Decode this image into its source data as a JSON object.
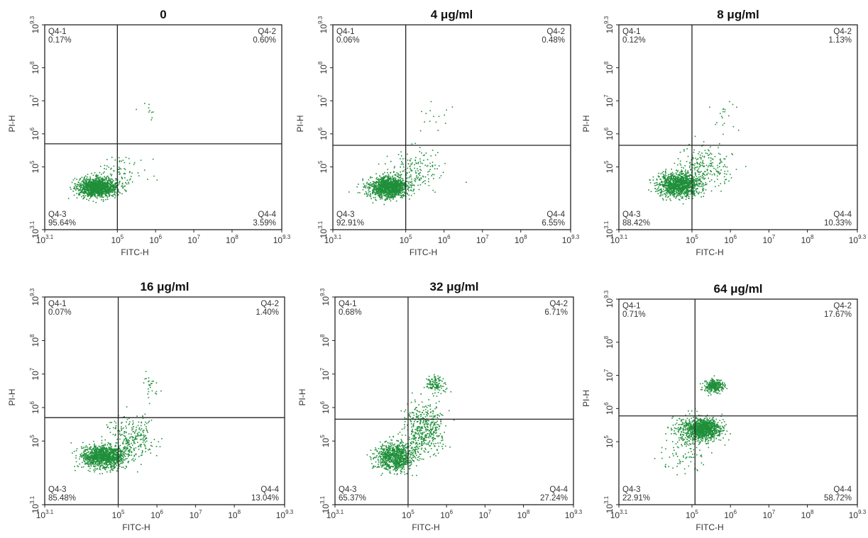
{
  "chart_data": [
    {
      "type": "scatter",
      "title": "0",
      "xlabel": "FITC-H",
      "ylabel": "PI-H",
      "x_scale": "log",
      "y_scale": "log",
      "xlim": [
        1258.9,
        1995262315
      ],
      "ylim": [
        1258.9,
        1995262315
      ],
      "x_ticks": [
        "10^3.1",
        "10^5",
        "10^6",
        "10^7",
        "10^8",
        "10^9.3"
      ],
      "y_ticks": [
        "10^3.1",
        "10^5",
        "10^6",
        "10^7",
        "10^8",
        "10^9.3"
      ],
      "gate": {
        "x": 100000,
        "y": 500000
      },
      "quadrants": [
        {
          "name": "Q4-1",
          "value": "0.17%",
          "pos": "top-left"
        },
        {
          "name": "Q4-2",
          "value": "0.60%",
          "pos": "top-right"
        },
        {
          "name": "Q4-3",
          "value": "95.64%",
          "pos": "bottom-left"
        },
        {
          "name": "Q4-4",
          "value": "3.59%",
          "pos": "bottom-right"
        }
      ],
      "clusters": [
        {
          "cx": 30000,
          "cy": 25000,
          "sx": 0.25,
          "sy": 0.14,
          "n": 1400
        },
        {
          "cx": 120000,
          "cy": 70000,
          "sx": 0.35,
          "sy": 0.28,
          "n": 90
        },
        {
          "cx": 600000,
          "cy": 5000000,
          "sx": 0.15,
          "sy": 0.12,
          "n": 10
        }
      ]
    },
    {
      "type": "scatter",
      "title": "4 μg/ml",
      "xlabel": "FITC-H",
      "ylabel": "PI-H",
      "x_scale": "log",
      "y_scale": "log",
      "xlim": [
        1258.9,
        1995262315
      ],
      "ylim": [
        1258.9,
        1995262315
      ],
      "x_ticks": [
        "10^3.1",
        "10^5",
        "10^6",
        "10^7",
        "10^8",
        "10^9.3"
      ],
      "y_ticks": [
        "10^3.1",
        "10^5",
        "10^6",
        "10^7",
        "10^8",
        "10^9.3"
      ],
      "gate": {
        "x": 100000,
        "y": 450000
      },
      "quadrants": [
        {
          "name": "Q4-1",
          "value": "0.06%",
          "pos": "top-left"
        },
        {
          "name": "Q4-2",
          "value": "0.48%",
          "pos": "top-right"
        },
        {
          "name": "Q4-3",
          "value": "92.91%",
          "pos": "bottom-left"
        },
        {
          "name": "Q4-4",
          "value": "6.55%",
          "pos": "bottom-right"
        }
      ],
      "clusters": [
        {
          "cx": 35000,
          "cy": 25000,
          "sx": 0.25,
          "sy": 0.16,
          "n": 1300
        },
        {
          "cx": 180000,
          "cy": 90000,
          "sx": 0.35,
          "sy": 0.3,
          "n": 160
        },
        {
          "cx": 600000,
          "cy": 3000000,
          "sx": 0.2,
          "sy": 0.25,
          "n": 15
        }
      ]
    },
    {
      "type": "scatter",
      "title": "8 μg/ml",
      "xlabel": "FITC-H",
      "ylabel": "PI-H",
      "x_scale": "log",
      "y_scale": "log",
      "xlim": [
        1258.9,
        1995262315
      ],
      "ylim": [
        1258.9,
        1995262315
      ],
      "x_ticks": [
        "10^3.1",
        "10^5",
        "10^6",
        "10^7",
        "10^8",
        "10^9.3"
      ],
      "y_ticks": [
        "10^3.1",
        "10^5",
        "10^6",
        "10^7",
        "10^8",
        "10^9.3"
      ],
      "gate": {
        "x": 100000,
        "y": 450000
      },
      "quadrants": [
        {
          "name": "Q4-1",
          "value": "0.12%",
          "pos": "top-left"
        },
        {
          "name": "Q4-2",
          "value": "1.13%",
          "pos": "top-right"
        },
        {
          "name": "Q4-3",
          "value": "88.42%",
          "pos": "bottom-left"
        },
        {
          "name": "Q4-4",
          "value": "10.33%",
          "pos": "bottom-right"
        }
      ],
      "clusters": [
        {
          "cx": 45000,
          "cy": 30000,
          "sx": 0.27,
          "sy": 0.17,
          "n": 1200
        },
        {
          "cx": 200000,
          "cy": 100000,
          "sx": 0.35,
          "sy": 0.3,
          "n": 230
        },
        {
          "cx": 600000,
          "cy": 4000000,
          "sx": 0.2,
          "sy": 0.25,
          "n": 20
        }
      ]
    },
    {
      "type": "scatter",
      "title": "16 μg/ml",
      "xlabel": "FITC-H",
      "ylabel": "PI-H",
      "x_scale": "log",
      "y_scale": "log",
      "xlim": [
        1258.9,
        1995262315
      ],
      "ylim": [
        1258.9,
        1995262315
      ],
      "x_ticks": [
        "10^3.1",
        "10^5",
        "10^6",
        "10^7",
        "10^8",
        "10^9.3"
      ],
      "y_ticks": [
        "10^3.1",
        "10^5",
        "10^6",
        "10^7",
        "10^8",
        "10^9.3"
      ],
      "gate": {
        "x": 100000,
        "y": 500000
      },
      "quadrants": [
        {
          "name": "Q4-1",
          "value": "0.07%",
          "pos": "top-left"
        },
        {
          "name": "Q4-2",
          "value": "1.40%",
          "pos": "top-right"
        },
        {
          "name": "Q4-3",
          "value": "85.48%",
          "pos": "bottom-left"
        },
        {
          "name": "Q4-4",
          "value": "13.04%",
          "pos": "bottom-right"
        }
      ],
      "clusters": [
        {
          "cx": 40000,
          "cy": 35000,
          "sx": 0.28,
          "sy": 0.17,
          "n": 1200
        },
        {
          "cx": 220000,
          "cy": 120000,
          "sx": 0.3,
          "sy": 0.3,
          "n": 260
        },
        {
          "cx": 600000,
          "cy": 5000000,
          "sx": 0.12,
          "sy": 0.2,
          "n": 25
        }
      ]
    },
    {
      "type": "scatter",
      "title": "32 μg/ml",
      "xlabel": "FITC-H",
      "ylabel": "PI-H",
      "x_scale": "log",
      "y_scale": "log",
      "xlim": [
        1258.9,
        1995262315
      ],
      "ylim": [
        1258.9,
        1995262315
      ],
      "x_ticks": [
        "10^3.1",
        "10^5",
        "10^6",
        "10^7",
        "10^8",
        "10^9.3"
      ],
      "y_ticks": [
        "10^3.1",
        "10^5",
        "10^6",
        "10^7",
        "10^8",
        "10^9.3"
      ],
      "gate": {
        "x": 100000,
        "y": 450000
      },
      "quadrants": [
        {
          "name": "Q4-1",
          "value": "0.68%",
          "pos": "top-left"
        },
        {
          "name": "Q4-2",
          "value": "6.71%",
          "pos": "top-right"
        },
        {
          "name": "Q4-3",
          "value": "65.37%",
          "pos": "bottom-left"
        },
        {
          "name": "Q4-4",
          "value": "27.24%",
          "pos": "bottom-right"
        }
      ],
      "clusters": [
        {
          "cx": 45000,
          "cy": 35000,
          "sx": 0.25,
          "sy": 0.2,
          "n": 900
        },
        {
          "cx": 250000,
          "cy": 250000,
          "sx": 0.25,
          "sy": 0.35,
          "n": 450
        },
        {
          "cx": 500000,
          "cy": 5000000,
          "sx": 0.12,
          "sy": 0.12,
          "n": 130
        }
      ]
    },
    {
      "type": "scatter",
      "title": "64 μg/ml",
      "xlabel": "FITC-H",
      "ylabel": "PI-H",
      "x_scale": "log",
      "y_scale": "log",
      "xlim": [
        1258.9,
        1995262315
      ],
      "ylim": [
        1258.9,
        1995262315
      ],
      "x_ticks": [
        "10^3.1",
        "10^5",
        "10^6",
        "10^7",
        "10^8",
        "10^9.3"
      ],
      "y_ticks": [
        "10^3.1",
        "10^5",
        "10^6",
        "10^7",
        "10^8",
        "10^9.3"
      ],
      "gate": {
        "x": 120000,
        "y": 600000
      },
      "quadrants": [
        {
          "name": "Q4-1",
          "value": "0.71%",
          "pos": "top-left"
        },
        {
          "name": "Q4-2",
          "value": "17.67%",
          "pos": "top-right"
        },
        {
          "name": "Q4-3",
          "value": "22.91%",
          "pos": "bottom-left"
        },
        {
          "name": "Q4-4",
          "value": "58.72%",
          "pos": "bottom-right"
        }
      ],
      "clusters": [
        {
          "cx": 200000,
          "cy": 250000,
          "sx": 0.22,
          "sy": 0.15,
          "n": 1000
        },
        {
          "cx": 80000,
          "cy": 200000,
          "sx": 0.25,
          "sy": 0.25,
          "n": 250
        },
        {
          "cx": 350000,
          "cy": 5000000,
          "sx": 0.12,
          "sy": 0.1,
          "n": 320
        },
        {
          "cx": 60000,
          "cy": 30000,
          "sx": 0.3,
          "sy": 0.25,
          "n": 60
        }
      ]
    }
  ],
  "colors": {
    "dots": "#1f8f3a",
    "axes": "#222222",
    "text": "#333333"
  }
}
